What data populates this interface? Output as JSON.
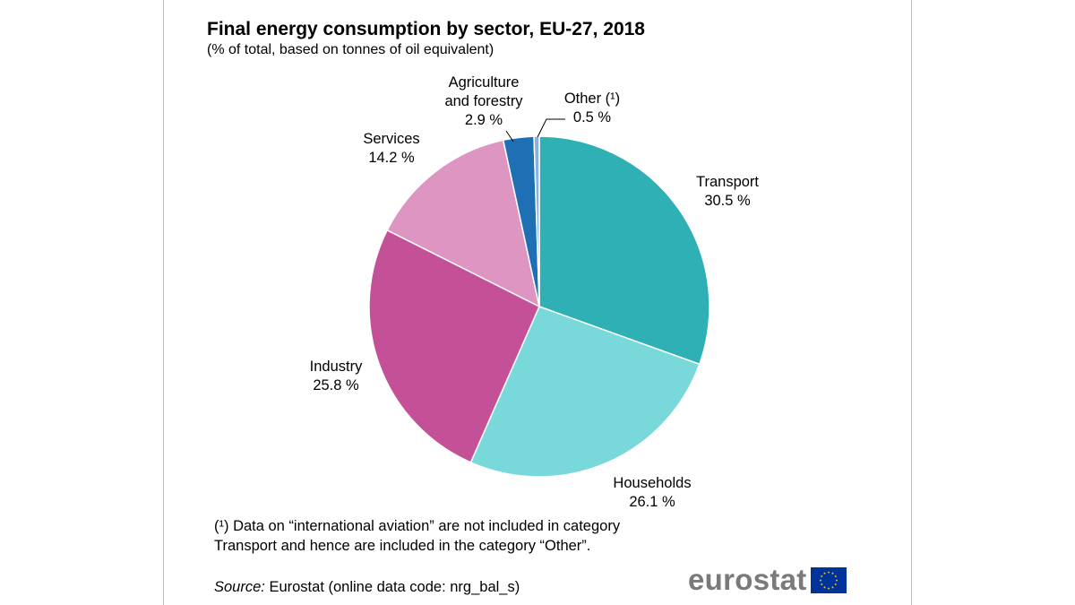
{
  "chart_data": {
    "type": "pie",
    "title": "Final energy consumption by sector, EU-27, 2018",
    "subtitle": "(% of total, based on tonnes of oil equivalent)",
    "unit": "%",
    "slices": [
      {
        "label_lines": [
          "Transport"
        ],
        "value": 30.5,
        "value_label": "30.5 %",
        "color": "#2fb0b4"
      },
      {
        "label_lines": [
          "Households"
        ],
        "value": 26.1,
        "value_label": "26.1 %",
        "color": "#79d9da"
      },
      {
        "label_lines": [
          "Industry"
        ],
        "value": 25.8,
        "value_label": "25.8 %",
        "color": "#c45197"
      },
      {
        "label_lines": [
          "Services"
        ],
        "value": 14.2,
        "value_label": "14.2 %",
        "color": "#dd95c1"
      },
      {
        "label_lines": [
          "Agriculture",
          "and forestry"
        ],
        "value": 2.9,
        "value_label": "2.9 %",
        "color": "#1e6fb3"
      },
      {
        "label_lines": [
          "Other (¹)"
        ],
        "value": 0.5,
        "value_label": "0.5 %",
        "color": "#8ab2e0"
      }
    ]
  },
  "footnote": "(¹) Data on “international aviation” are not included in category Transport and hence are included in the category “Other”.",
  "source": {
    "label": "Source:",
    "text": " Eurostat (online data code: nrg_bal_s)"
  },
  "logo": {
    "text": "eurostat",
    "flag_color": "#003399",
    "star_color": "#ffcc00"
  }
}
